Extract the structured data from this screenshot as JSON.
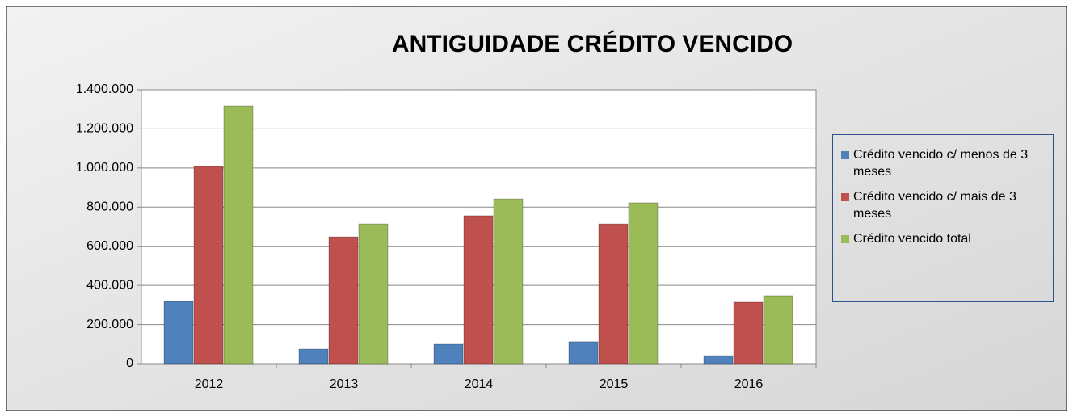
{
  "chart_data": {
    "type": "bar",
    "title": "ANTIGUIDADE CRÉDITO VENCIDO",
    "categories": [
      "2012",
      "2013",
      "2014",
      "2015",
      "2016"
    ],
    "series": [
      {
        "name": "Crédito vencido c/ menos de 3 meses",
        "color": "#4f81bd",
        "values": [
          318000,
          74000,
          99000,
          112000,
          41000
        ]
      },
      {
        "name": "Crédito vencido c/ mais  de 3 meses",
        "color": "#c0504d",
        "values": [
          1008000,
          648000,
          756000,
          714000,
          314000
        ]
      },
      {
        "name": "Crédito vencido total",
        "color": "#9bbb59",
        "values": [
          1317000,
          714000,
          842000,
          822000,
          347000
        ]
      }
    ],
    "ylim": [
      0,
      1400000
    ],
    "yticks": [
      0,
      {
        "value": 200000,
        "label": "200.000"
      },
      {
        "value": 400000,
        "label": "400.000"
      },
      {
        "value": 600000,
        "label": "600.000"
      },
      {
        "value": 800000,
        "label": "800.000"
      },
      {
        "value": 1000000,
        "label": "1.000.000"
      },
      {
        "value": 1200000,
        "label": "1.200.000"
      },
      {
        "value": 1400000,
        "label": "1.400.000"
      }
    ],
    "grid": true,
    "legend": "right"
  }
}
